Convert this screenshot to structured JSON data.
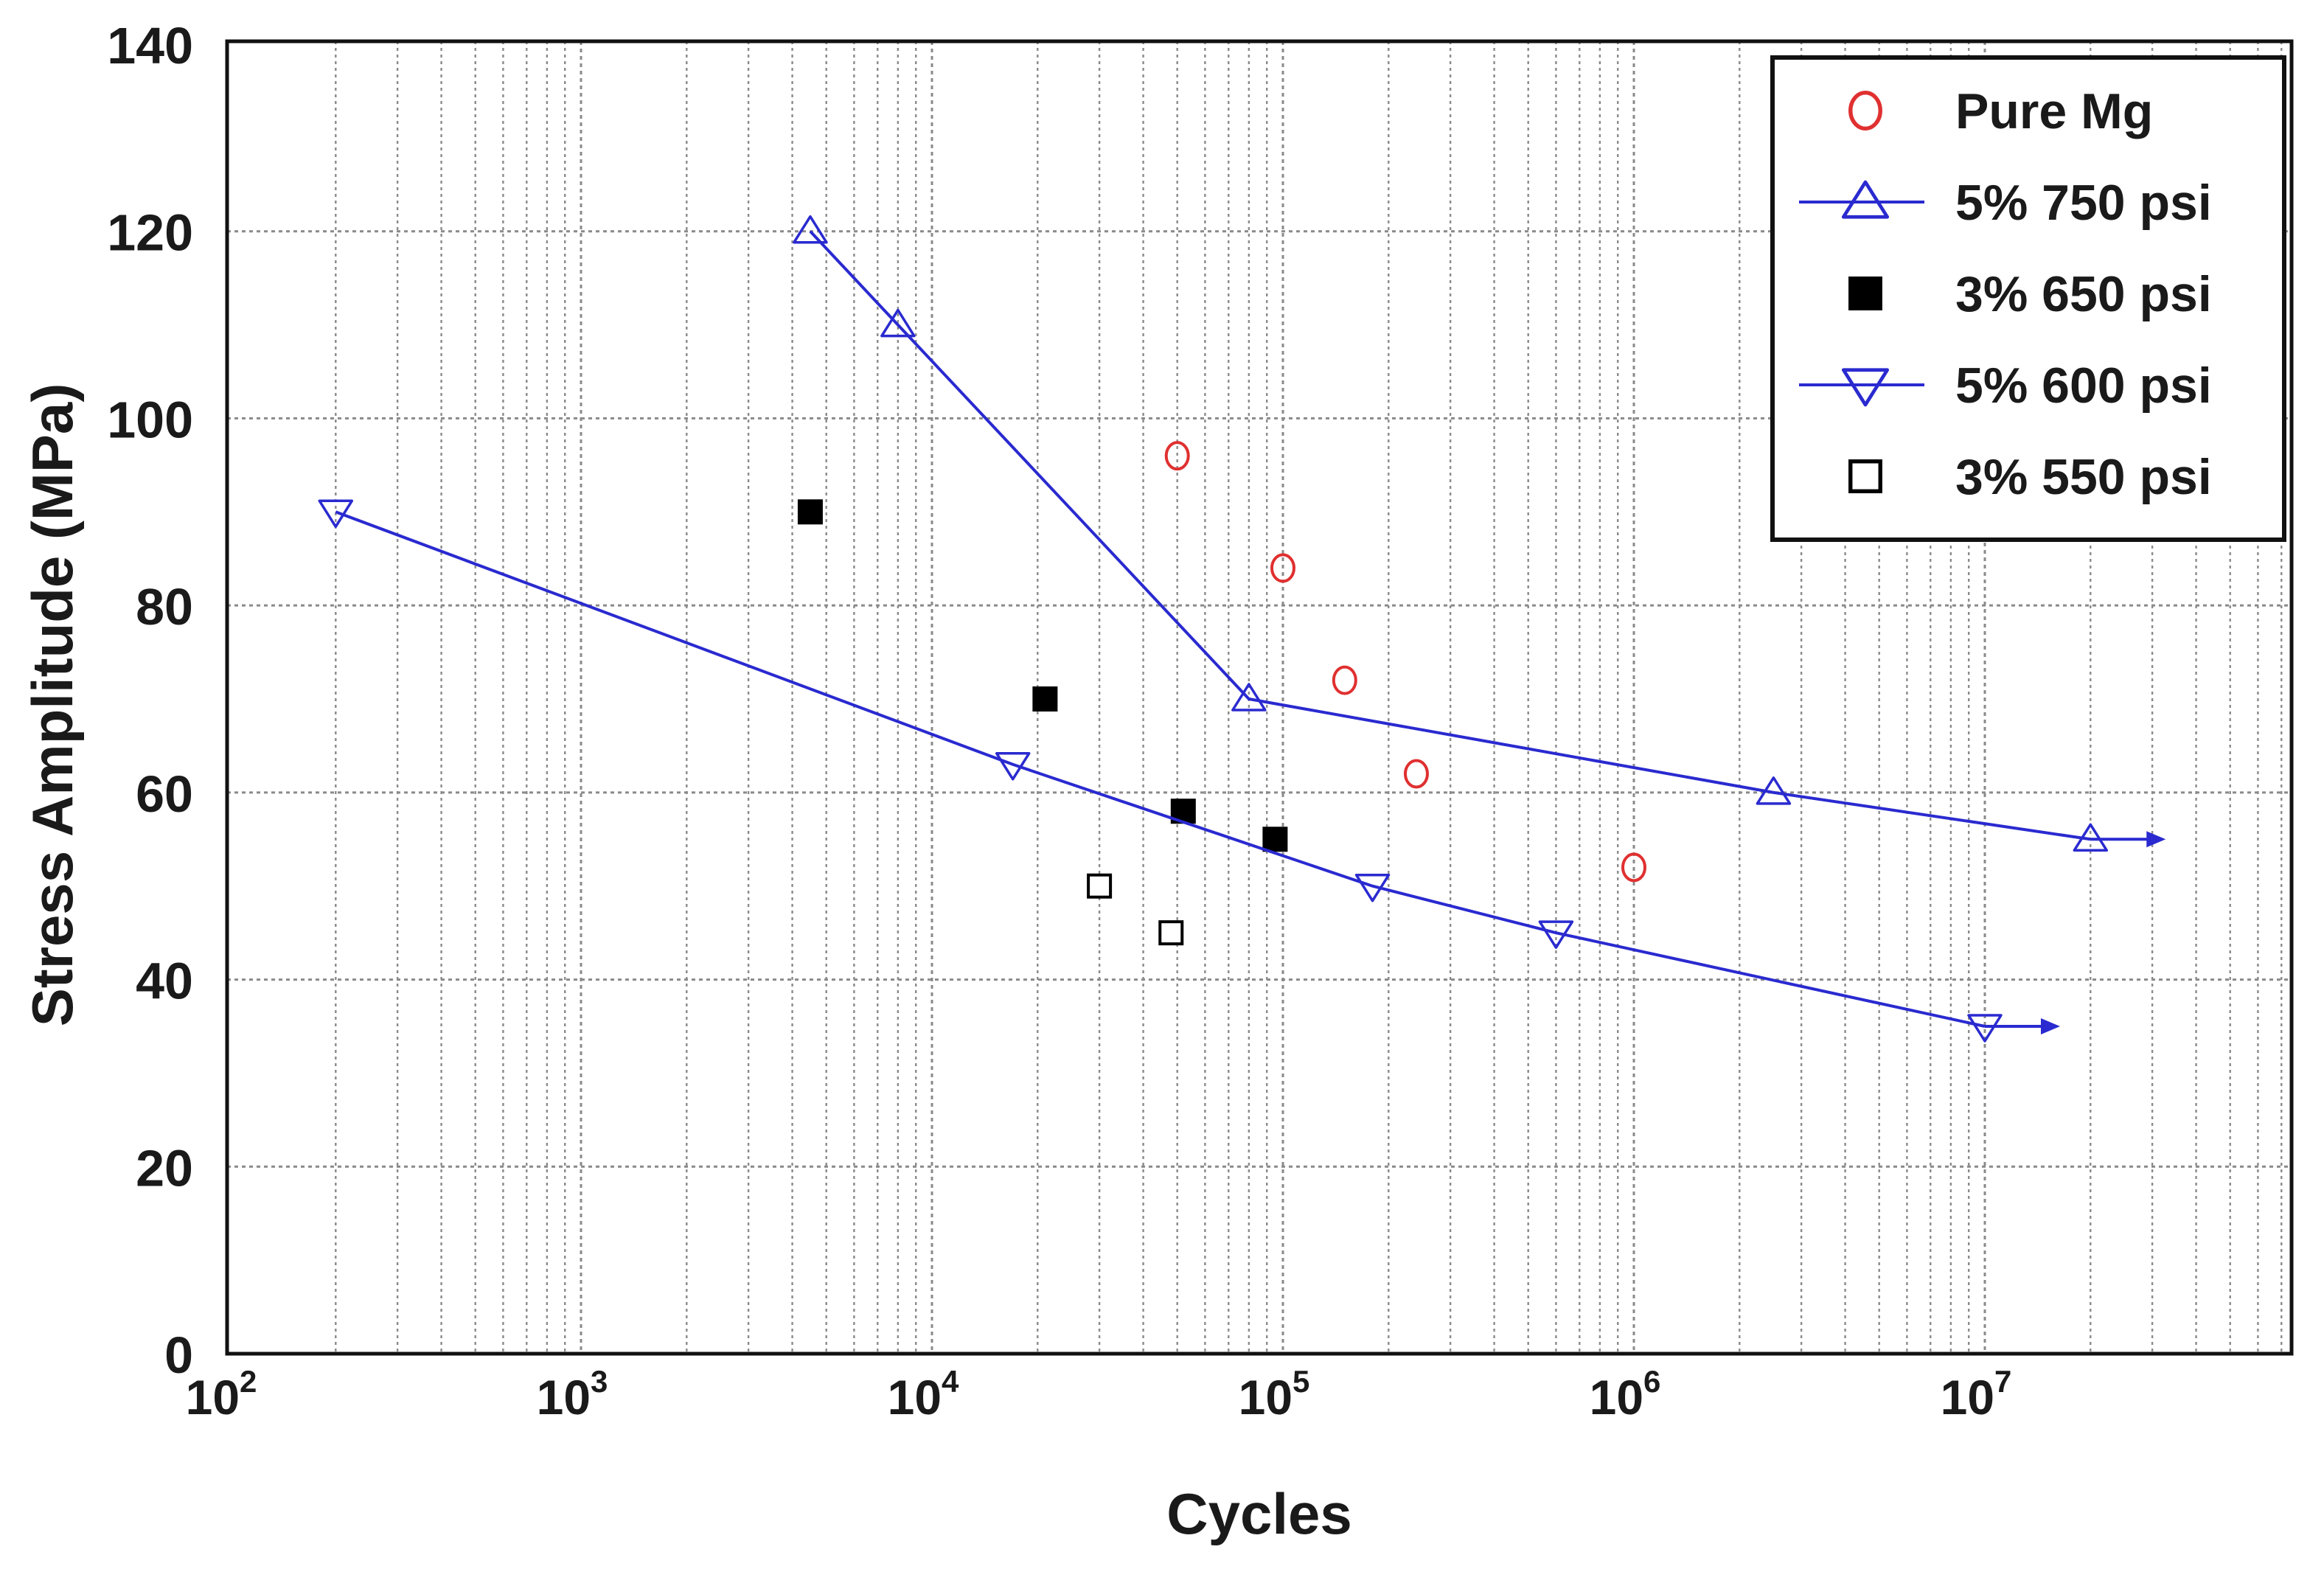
{
  "chart_data": {
    "type": "scatter",
    "title": "",
    "xlabel": "Cycles",
    "ylabel": "Stress Amplitude (MPa)",
    "xscale": "log",
    "xlim": [
      100,
      70000000
    ],
    "ylim": [
      0,
      140
    ],
    "x_ticks": [
      {
        "base": "10",
        "exp": "2",
        "value": 100
      },
      {
        "base": "10",
        "exp": "3",
        "value": 1000
      },
      {
        "base": "10",
        "exp": "4",
        "value": 10000
      },
      {
        "base": "10",
        "exp": "5",
        "value": 100000
      },
      {
        "base": "10",
        "exp": "6",
        "value": 1000000
      },
      {
        "base": "10",
        "exp": "7",
        "value": 10000000
      }
    ],
    "y_ticks": [
      "0",
      "20",
      "40",
      "60",
      "80",
      "100",
      "120",
      "140"
    ],
    "grid": true,
    "legend_position": "top-right",
    "series": [
      {
        "name": "Pure Mg",
        "marker": "circle-open",
        "color": "#e03030",
        "line": false,
        "x": [
          50000,
          100000,
          150000,
          240000,
          1000000
        ],
        "y": [
          96,
          84,
          72,
          62,
          52
        ]
      },
      {
        "name": "5% 750 psi",
        "marker": "triangle-up-open",
        "color": "#2a2ad0",
        "line": true,
        "arrow": true,
        "x": [
          4500,
          8000,
          80000,
          2500000,
          20000000
        ],
        "y": [
          120,
          110,
          70,
          60,
          55
        ]
      },
      {
        "name": "3% 650 psi",
        "marker": "square-filled",
        "color": "#000000",
        "line": false,
        "x": [
          4500,
          21000,
          52000,
          95000
        ],
        "y": [
          90,
          70,
          58,
          55
        ]
      },
      {
        "name": "5% 600 psi",
        "marker": "triangle-down-open",
        "color": "#2a2ad0",
        "line": true,
        "arrow": true,
        "x": [
          200,
          17000,
          180000,
          600000,
          10000000
        ],
        "y": [
          90,
          63,
          50,
          45,
          35
        ]
      },
      {
        "name": "3% 550 psi",
        "marker": "square-open",
        "color": "#000000",
        "line": false,
        "x": [
          30000,
          48000
        ],
        "y": [
          50,
          45
        ]
      }
    ]
  }
}
